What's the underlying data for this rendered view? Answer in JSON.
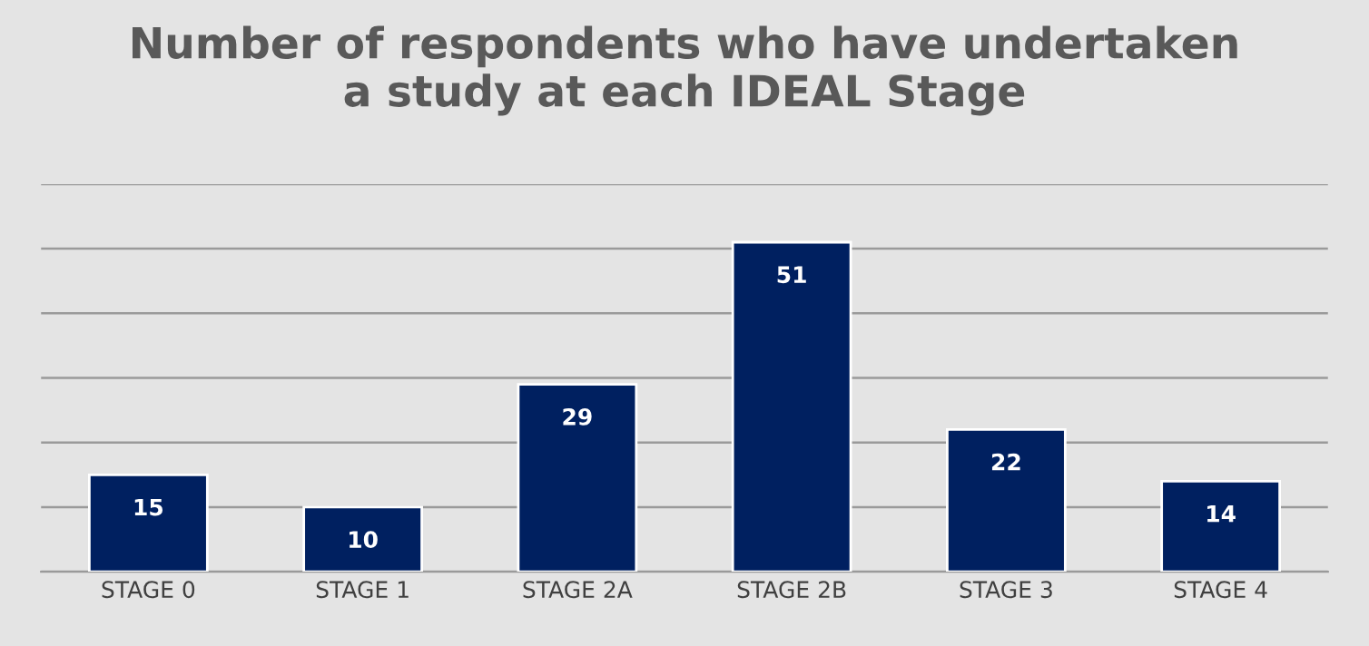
{
  "chart_data": {
    "type": "bar",
    "title": "Number of respondents who have undertaken\na study at each IDEAL Stage",
    "categories": [
      "STAGE 0",
      "STAGE 1",
      "STAGE 2A",
      "STAGE 2B",
      "STAGE 3",
      "STAGE 4"
    ],
    "values": [
      15,
      10,
      29,
      51,
      22,
      14
    ],
    "color": "#002060",
    "ylim": [
      0,
      60
    ],
    "yticks": [
      {
        "value": 0,
        "label": null
      },
      {
        "value": 10,
        "label": null
      },
      {
        "value": 20,
        "label": null
      },
      {
        "value": 30,
        "label": null
      },
      {
        "value": 40,
        "label": null
      },
      {
        "value": 50,
        "label": null
      },
      {
        "value": 60,
        "label": null
      }
    ],
    "grid": "y",
    "tick_labels": "x",
    "data_labels": true
  }
}
